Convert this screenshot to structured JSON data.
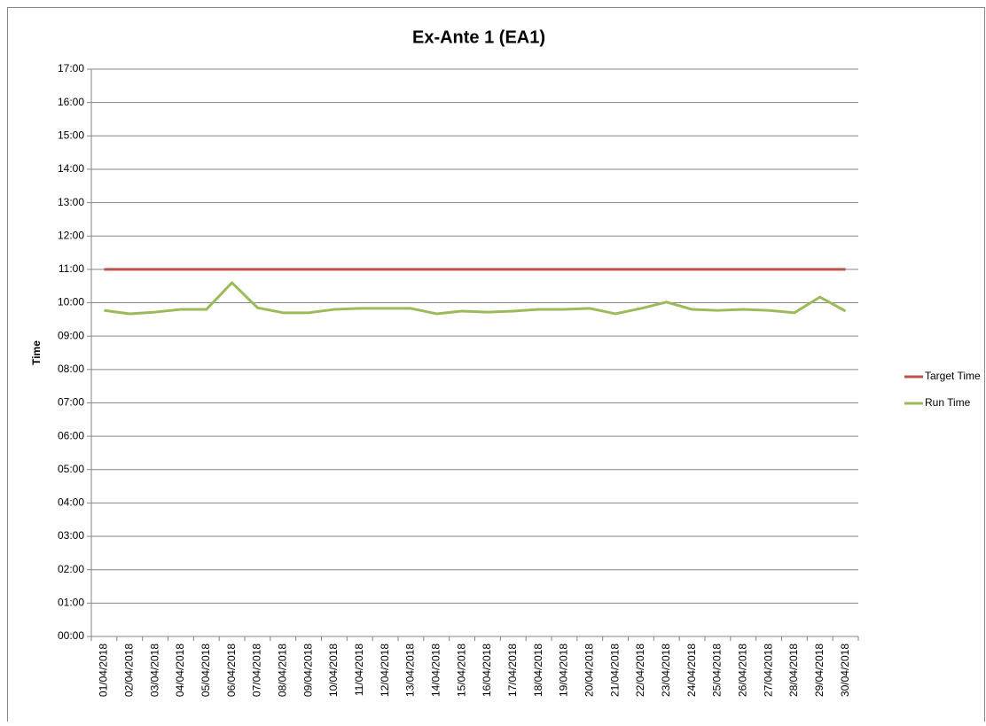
{
  "chart_data": {
    "type": "line",
    "title": "Ex-Ante 1 (EA1)",
    "y_label": "Time",
    "categories": [
      "01/04/2018",
      "02/04/2018",
      "03/04/2018",
      "04/04/2018",
      "05/04/2018",
      "06/04/2018",
      "07/04/2018",
      "08/04/2018",
      "09/04/2018",
      "10/04/2018",
      "11/04/2018",
      "12/04/2018",
      "13/04/2018",
      "14/04/2018",
      "15/04/2018",
      "16/04/2018",
      "17/04/2018",
      "18/04/2018",
      "19/04/2018",
      "20/04/2018",
      "21/04/2018",
      "22/04/2018",
      "23/04/2018",
      "24/04/2018",
      "25/04/2018",
      "26/04/2018",
      "27/04/2018",
      "28/04/2018",
      "29/04/2018",
      "30/04/2018"
    ],
    "series": [
      {
        "name": "Target Time",
        "color": "#c0504d",
        "values": [
          11,
          11,
          11,
          11,
          11,
          11,
          11,
          11,
          11,
          11,
          11,
          11,
          11,
          11,
          11,
          11,
          11,
          11,
          11,
          11,
          11,
          11,
          11,
          11,
          11,
          11,
          11,
          11,
          11,
          11
        ]
      },
      {
        "name": "Run Time",
        "color": "#9bbb59",
        "values": [
          9.77,
          9.67,
          9.72,
          9.8,
          9.8,
          10.6,
          9.85,
          9.7,
          9.7,
          9.8,
          9.83,
          9.83,
          9.83,
          9.67,
          9.75,
          9.72,
          9.75,
          9.8,
          9.8,
          9.83,
          9.67,
          9.83,
          10.02,
          9.8,
          9.77,
          9.8,
          9.77,
          9.7,
          10.17,
          9.75
        ]
      }
    ],
    "ylim": [
      0,
      17
    ],
    "yticks": [
      {
        "value": 0,
        "label": "00:00"
      },
      {
        "value": 1,
        "label": "01:00"
      },
      {
        "value": 2,
        "label": "02:00"
      },
      {
        "value": 3,
        "label": "03:00"
      },
      {
        "value": 4,
        "label": "04:00"
      },
      {
        "value": 5,
        "label": "05:00"
      },
      {
        "value": 6,
        "label": "06:00"
      },
      {
        "value": 7,
        "label": "07:00"
      },
      {
        "value": 8,
        "label": "08:00"
      },
      {
        "value": 9,
        "label": "09:00"
      },
      {
        "value": 10,
        "label": "10:00"
      },
      {
        "value": 11,
        "label": "11:00"
      },
      {
        "value": 12,
        "label": "12:00"
      },
      {
        "value": 13,
        "label": "13:00"
      },
      {
        "value": 14,
        "label": "14:00"
      },
      {
        "value": 15,
        "label": "15:00"
      },
      {
        "value": 16,
        "label": "16:00"
      },
      {
        "value": 17,
        "label": "17:00"
      }
    ],
    "grid": true,
    "legend": "right"
  }
}
